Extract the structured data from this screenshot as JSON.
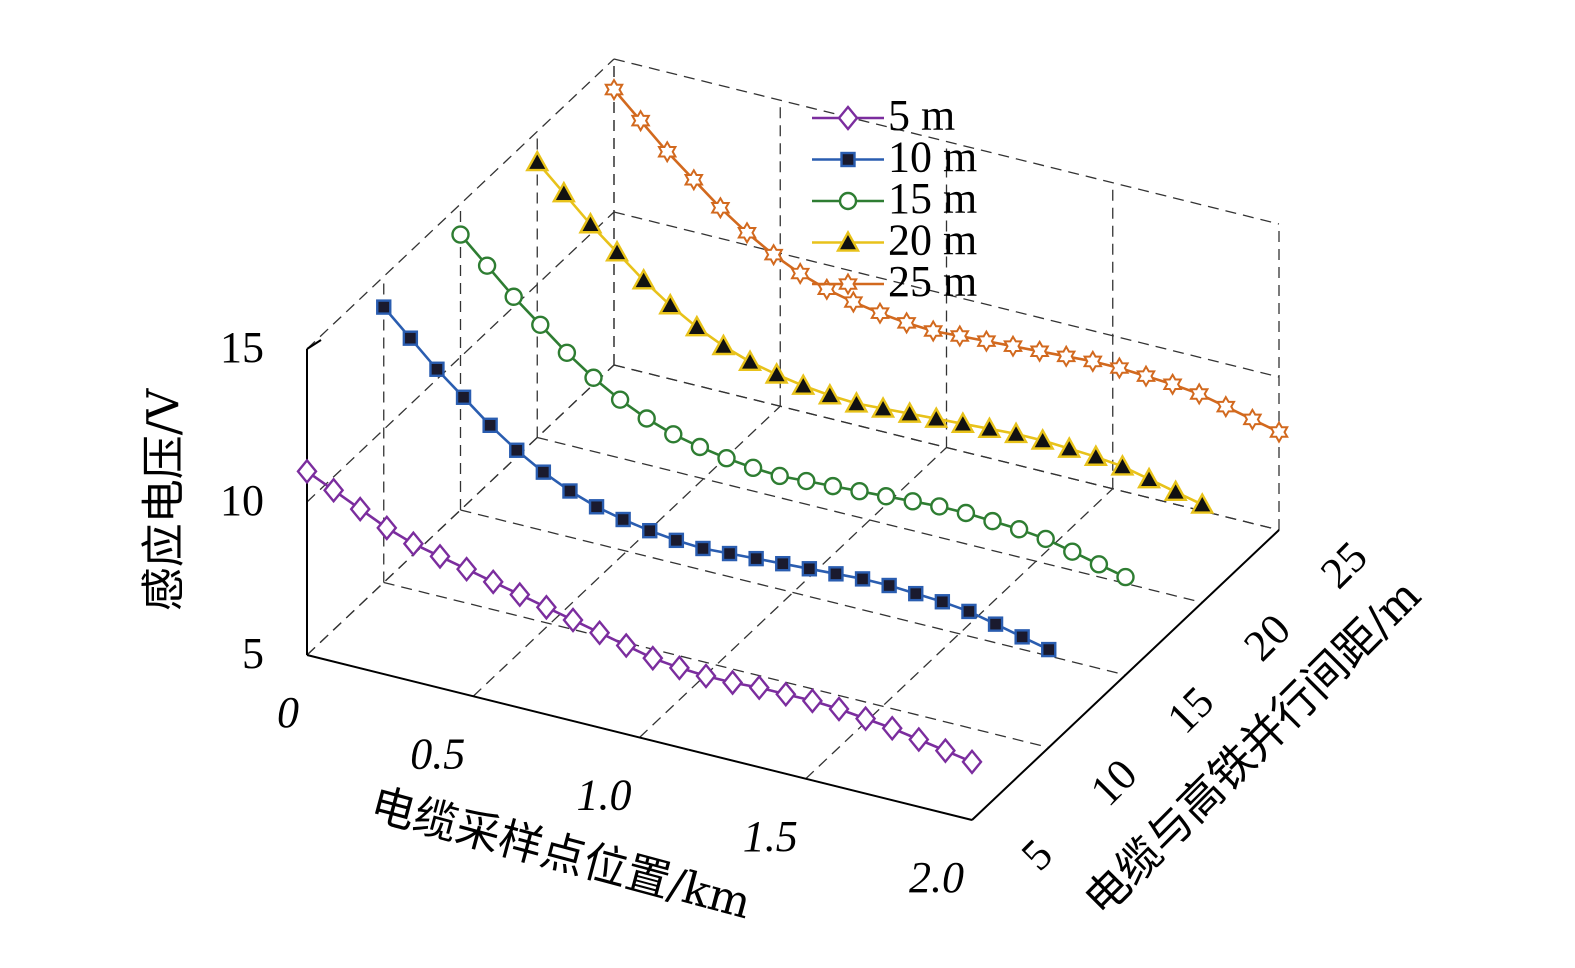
{
  "chart_data": {
    "type": "line",
    "projection": "3d",
    "zlabel": "感应电压/V",
    "xlabel": "电缆采样点位置/km",
    "ylabel": "电缆与高铁并行间距/m",
    "xlim": [
      0,
      2.0
    ],
    "ylim": [
      5,
      25
    ],
    "zlim": [
      5,
      15
    ],
    "x_ticks": [
      "0",
      "0.5",
      "1.0",
      "1.5",
      "2.0"
    ],
    "y_ticks": [
      "5",
      "10",
      "15",
      "20",
      "25"
    ],
    "z_ticks": [
      "5",
      "10",
      "15"
    ],
    "x": [
      0.0,
      0.08,
      0.16,
      0.24,
      0.32,
      0.4,
      0.48,
      0.56,
      0.64,
      0.72,
      0.8,
      0.88,
      0.96,
      1.04,
      1.12,
      1.2,
      1.28,
      1.36,
      1.44,
      1.52,
      1.6,
      1.68,
      1.76,
      1.84,
      1.92,
      2.0
    ],
    "series": [
      {
        "name": "5 m",
        "y": 5,
        "marker": "diamond-open",
        "color": "#7b2d9e",
        "values": [
          11.0,
          10.6,
          10.2,
          9.8,
          9.5,
          9.3,
          9.1,
          8.9,
          8.7,
          8.5,
          8.3,
          8.1,
          7.9,
          7.7,
          7.6,
          7.55,
          7.55,
          7.6,
          7.6,
          7.6,
          7.55,
          7.45,
          7.35,
          7.2,
          7.05,
          6.9
        ]
      },
      {
        "name": "10 m",
        "y": 10,
        "marker": "square-filled",
        "color": "#2a5db0",
        "values": [
          14.0,
          13.2,
          12.4,
          11.7,
          11.0,
          10.4,
          9.9,
          9.5,
          9.2,
          9.0,
          8.85,
          8.75,
          8.7,
          8.75,
          8.8,
          8.85,
          8.9,
          8.95,
          9.0,
          9.0,
          8.95,
          8.9,
          8.8,
          8.6,
          8.4,
          8.2
        ]
      },
      {
        "name": "15 m",
        "y": 15,
        "marker": "circle-open",
        "color": "#2e7d32",
        "values": [
          14.0,
          13.2,
          12.4,
          11.7,
          11.0,
          10.4,
          9.9,
          9.5,
          9.2,
          9.0,
          8.85,
          8.75,
          8.7,
          8.75,
          8.8,
          8.85,
          8.9,
          8.95,
          9.0,
          9.0,
          8.95,
          8.9,
          8.8,
          8.6,
          8.4,
          8.2
        ]
      },
      {
        "name": "20 m",
        "y": 20,
        "marker": "triangle-filled",
        "color": "#e8c21a",
        "values": [
          14.0,
          13.2,
          12.4,
          11.7,
          11.0,
          10.4,
          9.9,
          9.5,
          9.2,
          9.0,
          8.85,
          8.75,
          8.7,
          8.75,
          8.8,
          8.85,
          8.9,
          8.95,
          9.0,
          9.0,
          8.95,
          8.9,
          8.8,
          8.6,
          8.4,
          8.2
        ]
      },
      {
        "name": "25 m",
        "y": 25,
        "marker": "star-open",
        "color": "#d2691e",
        "values": [
          14.0,
          13.2,
          12.4,
          11.7,
          11.0,
          10.4,
          9.9,
          9.5,
          9.2,
          9.0,
          8.85,
          8.75,
          8.7,
          8.75,
          8.8,
          8.85,
          8.9,
          8.95,
          9.0,
          9.0,
          8.95,
          8.9,
          8.8,
          8.6,
          8.4,
          8.2
        ]
      }
    ],
    "legend": [
      "5 m",
      "10 m",
      "15 m",
      "20 m",
      "25 m"
    ],
    "legend_position": "top-center"
  }
}
